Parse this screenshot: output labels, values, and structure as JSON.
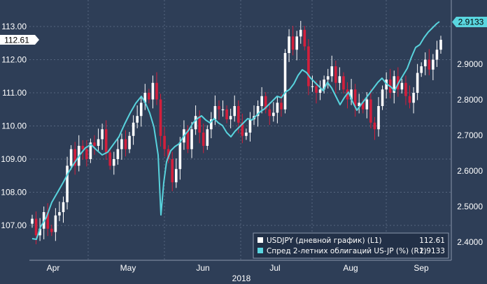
{
  "chart_data": {
    "type": "candlestick+line",
    "year_label": "2018",
    "x_months": [
      "Apr",
      "May",
      "Jun",
      "Jul",
      "Aug",
      "Sep"
    ],
    "left_axis": {
      "series": "USDJPY (L1)",
      "ylim": [
        106.5,
        113.6
      ],
      "ticks": [
        "107.00",
        "108.00",
        "109.00",
        "110.00",
        "111.00",
        "112.00",
        "113.00"
      ]
    },
    "right_axis": {
      "series": "US-JP spread (R1)",
      "ylim": [
        2.355,
        2.93
      ],
      "ticks": [
        "2.4000",
        "2.5000",
        "2.6000",
        "2.7000",
        "2.8000",
        "2.9000"
      ]
    },
    "last_left": "112.61",
    "last_right": "2.9133",
    "legend": [
      {
        "label": "USDJPY (дневной график) (L1)",
        "value": "112.61",
        "color": "#ffffff"
      },
      {
        "label": "Спред 2-летних облигаций US-JP (%) (R1)",
        "value": "2.9133",
        "color": "#5ad6e0"
      }
    ],
    "candle_up_color": "#ffffff",
    "candle_down_color": "#d31f3c",
    "spread_line_color": "#58d3dd",
    "usdjpy_close": [
      107.2,
      106.7,
      106.9,
      107.4,
      106.9,
      106.8,
      107.3,
      107.4,
      107.7,
      108.8,
      109.3,
      108.8,
      109.4,
      109.3,
      109.0,
      109.5,
      109.4,
      109.6,
      109.9,
      109.2,
      108.8,
      109.0,
      109.3,
      109.6,
      109.3,
      109.7,
      110.1,
      110.3,
      110.7,
      111.0,
      110.8,
      111.3,
      110.8,
      109.7,
      109.3,
      109.0,
      108.3,
      108.7,
      109.5,
      109.9,
      109.3,
      109.9,
      110.3,
      109.8,
      109.4,
      109.9,
      110.2,
      110.6,
      110.5,
      110.5,
      110.2,
      110.3,
      110.6,
      110.1,
      109.7,
      109.8,
      110.2,
      110.3,
      110.6,
      110.9,
      110.5,
      110.3,
      110.4,
      110.7,
      110.5,
      112.2,
      112.7,
      112.3,
      112.7,
      112.9,
      112.4,
      111.2,
      111.2,
      111.0,
      111.1,
      111.4,
      111.5,
      111.8,
      111.3,
      111.5,
      111.1,
      110.8,
      111.1,
      110.6,
      110.7,
      110.5,
      110.8,
      110.1,
      109.9,
      110.6,
      111.1,
      111.4,
      111.0,
      111.5,
      111.1,
      111.3,
      110.9,
      110.7,
      111.0,
      111.6,
      111.8,
      112.0,
      111.7,
      112.0,
      112.3,
      112.6
    ]
  }
}
